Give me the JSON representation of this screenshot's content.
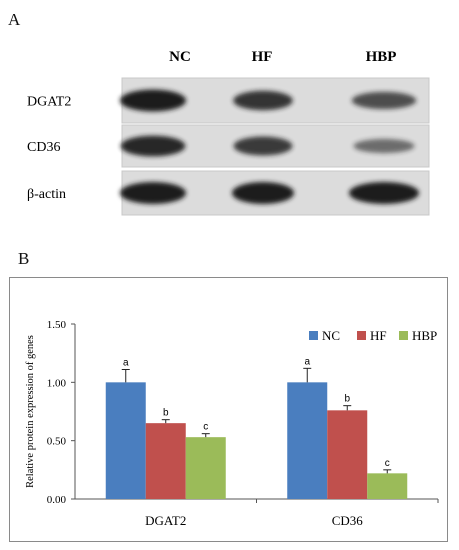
{
  "panel_a": {
    "label": "A",
    "lanes": [
      "NC",
      "HF",
      "HBP"
    ],
    "rows": [
      {
        "label": "DGAT2",
        "intensity": [
          1.0,
          0.8,
          0.6
        ]
      },
      {
        "label": "CD36",
        "intensity": [
          0.9,
          0.75,
          0.35
        ]
      },
      {
        "label": "β-actin",
        "intensity": [
          1.0,
          1.0,
          1.0
        ]
      }
    ]
  },
  "panel_b": {
    "label": "B"
  },
  "chart_data": {
    "type": "bar",
    "categories": [
      "DGAT2",
      "CD36"
    ],
    "ylabel": "Relative protein expression of genes",
    "ylim": [
      0,
      1.5
    ],
    "yticks": [
      "0.00",
      "0.50",
      "1.00",
      "1.50"
    ],
    "legend_position": "top-right",
    "grid": false,
    "series": [
      {
        "name": "NC",
        "color": "#4a7ebf",
        "values": [
          1.0,
          1.0
        ],
        "errors": [
          0.11,
          0.12
        ],
        "letters": [
          "a",
          "a"
        ]
      },
      {
        "name": "HF",
        "color": "#c0504d",
        "values": [
          0.65,
          0.76
        ],
        "errors": [
          0.03,
          0.04
        ],
        "letters": [
          "b",
          "b"
        ]
      },
      {
        "name": "HBP",
        "color": "#9bbb59",
        "values": [
          0.53,
          0.22
        ],
        "errors": [
          0.03,
          0.03
        ],
        "letters": [
          "c",
          "c"
        ]
      }
    ]
  }
}
